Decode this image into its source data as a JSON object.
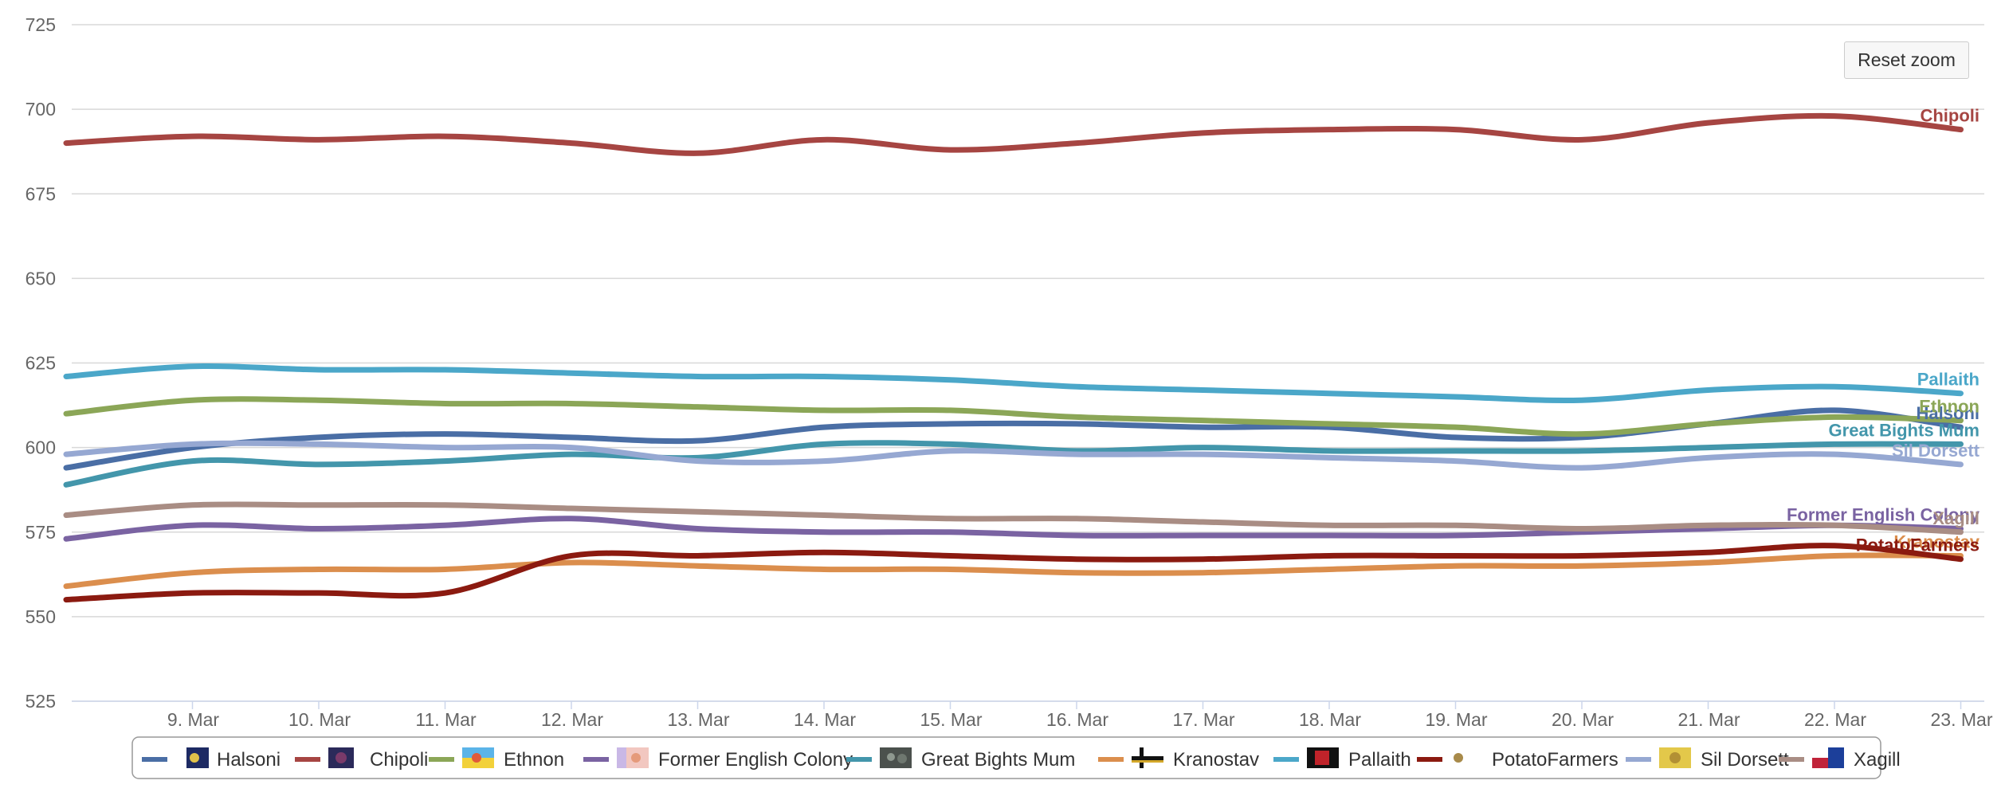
{
  "reset_zoom_label": "Reset zoom",
  "chart_data": {
    "type": "line",
    "title": "",
    "xlabel": "",
    "ylabel": "",
    "ylim": [
      525,
      725
    ],
    "yticks": [
      "525",
      "550",
      "575",
      "600",
      "625",
      "650",
      "675",
      "700",
      "725"
    ],
    "x_dates": [
      "8. Mar",
      "9. Mar",
      "10. Mar",
      "11. Mar",
      "12. Mar",
      "13. Mar",
      "14. Mar",
      "15. Mar",
      "16. Mar",
      "17. Mar",
      "18. Mar",
      "19. Mar",
      "20. Mar",
      "21. Mar",
      "22. Mar",
      "23. Mar"
    ],
    "xticks": [
      "9. Mar",
      "10. Mar",
      "11. Mar",
      "12. Mar",
      "13. Mar",
      "14. Mar",
      "15. Mar",
      "16. Mar",
      "17. Mar",
      "18. Mar",
      "19. Mar",
      "20. Mar",
      "21. Mar",
      "22. Mar",
      "23. Mar"
    ],
    "grid": true,
    "legend_position": "bottom",
    "series": [
      {
        "name": "Halsoni",
        "color": "#4a6ea5",
        "flag": "halsoni-flag-icon",
        "values": [
          594,
          600,
          603,
          604,
          603,
          602,
          606,
          607,
          607,
          606,
          606,
          603,
          603,
          607,
          611,
          606
        ]
      },
      {
        "name": "Chipoli",
        "color": "#a64542",
        "flag": "chipoli-flag-icon",
        "values": [
          690,
          692,
          691,
          692,
          690,
          687,
          691,
          688,
          690,
          693,
          694,
          694,
          691,
          696,
          698,
          694
        ]
      },
      {
        "name": "Ethnon",
        "color": "#8ba657",
        "flag": "ethnon-flag-icon",
        "values": [
          610,
          614,
          614,
          613,
          613,
          612,
          611,
          611,
          609,
          608,
          607,
          606,
          604,
          607,
          609,
          608
        ]
      },
      {
        "name": "Former English Colony",
        "color": "#7a63a2",
        "flag": "former-english-colony-flag-icon",
        "values": [
          573,
          577,
          576,
          577,
          579,
          576,
          575,
          575,
          574,
          574,
          574,
          574,
          575,
          576,
          577,
          576
        ]
      },
      {
        "name": "Great Bights Mum",
        "color": "#4396ab",
        "flag": "great-bights-mum-flag-icon",
        "values": [
          589,
          596,
          595,
          596,
          598,
          597,
          601,
          601,
          599,
          600,
          599,
          599,
          599,
          600,
          601,
          601
        ]
      },
      {
        "name": "Kranostav",
        "color": "#db8e4d",
        "flag": "kranostav-flag-icon",
        "values": [
          559,
          563,
          564,
          564,
          566,
          565,
          564,
          564,
          563,
          563,
          564,
          565,
          565,
          566,
          568,
          568
        ]
      },
      {
        "name": "Pallaith",
        "color": "#4ba7c9",
        "flag": "pallaith-flag-icon",
        "values": [
          621,
          624,
          623,
          623,
          622,
          621,
          621,
          620,
          618,
          617,
          616,
          615,
          614,
          617,
          618,
          616
        ]
      },
      {
        "name": "PotatoFarmers",
        "color": "#8b1a10",
        "flag": "potatofarmers-flag-icon",
        "values": [
          555,
          557,
          557,
          557,
          568,
          568,
          569,
          568,
          567,
          567,
          568,
          568,
          568,
          569,
          571,
          567
        ]
      },
      {
        "name": "Sil Dorsett",
        "color": "#96a8d2",
        "flag": "sil-dorsett-flag-icon",
        "values": [
          598,
          601,
          601,
          600,
          600,
          596,
          596,
          599,
          598,
          598,
          597,
          596,
          594,
          597,
          598,
          595
        ]
      },
      {
        "name": "Xagill",
        "color": "#a98d84",
        "flag": "xagill-flag-icon",
        "values": [
          580,
          583,
          583,
          583,
          582,
          581,
          580,
          579,
          579,
          578,
          577,
          577,
          576,
          577,
          577,
          575
        ]
      }
    ]
  }
}
